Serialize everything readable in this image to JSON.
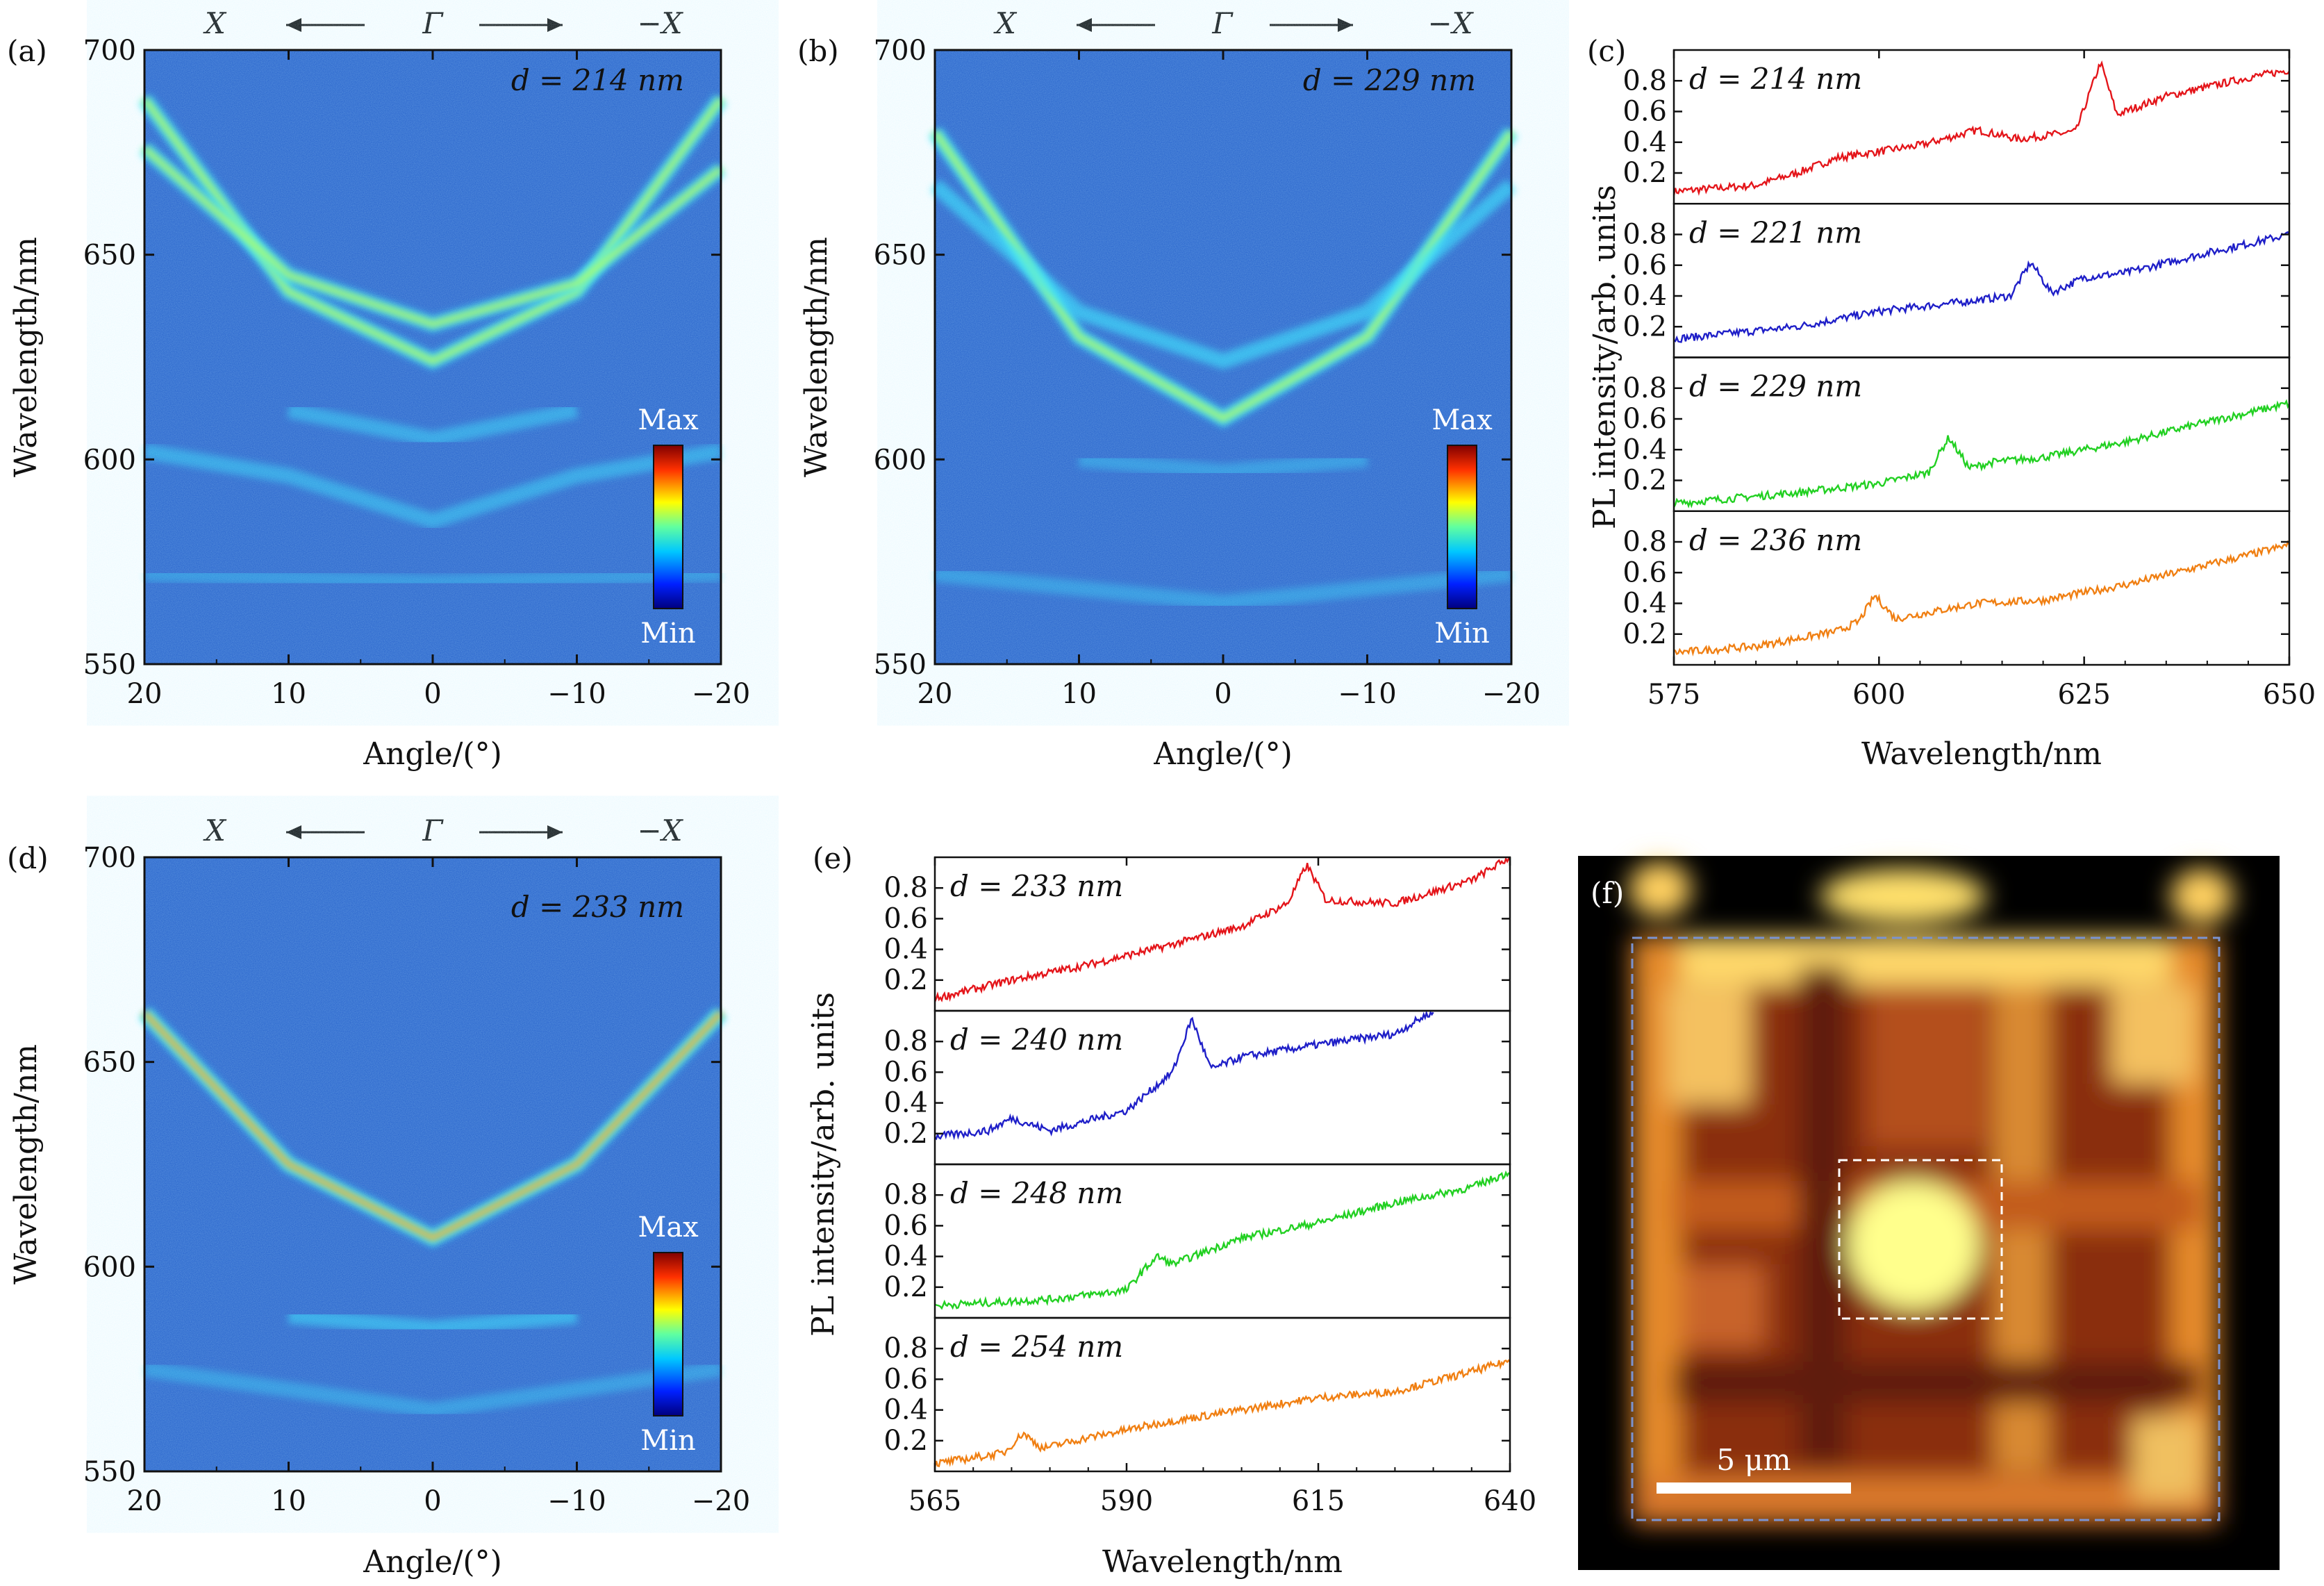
{
  "panels": {
    "a": {
      "label": "(a)",
      "d_text": "d = 214 nm",
      "xlabel": "Angle/(°)",
      "ylabel": "Wavelength/nm",
      "xticks": [
        "20",
        "10",
        "0",
        "−10",
        "−20"
      ],
      "yticks": [
        "700",
        "650",
        "600",
        "550"
      ],
      "dir": {
        "left": "X",
        "mid": "Γ",
        "right": "−X"
      },
      "cbar": {
        "max": "Max",
        "min": "Min"
      }
    },
    "b": {
      "label": "(b)",
      "d_text": "d = 229 nm",
      "xlabel": "Angle/(°)",
      "ylabel": "Wavelength/nm",
      "xticks": [
        "20",
        "10",
        "0",
        "−10",
        "−20"
      ],
      "yticks": [
        "700",
        "650",
        "600",
        "550"
      ],
      "dir": {
        "left": "X",
        "mid": "Γ",
        "right": "−X"
      },
      "cbar": {
        "max": "Max",
        "min": "Min"
      }
    },
    "c": {
      "label": "(c)",
      "xlabel": "Wavelength/nm",
      "ylabel": "PL intensity/arb. units",
      "xticks": [
        "575",
        "600",
        "625",
        "650"
      ],
      "yticks": [
        "0.8",
        "0.6",
        "0.4",
        "0.2"
      ],
      "d_labels": [
        "d = 214 nm",
        "d = 221 nm",
        "d = 229 nm",
        "d = 236 nm"
      ]
    },
    "d": {
      "label": "(d)",
      "d_text": "d = 233 nm",
      "xlabel": "Angle/(°)",
      "ylabel": "Wavelength/nm",
      "xticks": [
        "20",
        "10",
        "0",
        "−10",
        "−20"
      ],
      "yticks": [
        "700",
        "650",
        "600",
        "550"
      ],
      "dir": {
        "left": "X",
        "mid": "Γ",
        "right": "−X"
      },
      "cbar": {
        "max": "Max",
        "min": "Min"
      }
    },
    "e": {
      "label": "(e)",
      "xlabel": "Wavelength/nm",
      "ylabel": "PL intensity/arb. units",
      "xticks": [
        "565",
        "590",
        "615",
        "640"
      ],
      "yticks": [
        "0.8",
        "0.6",
        "0.4",
        "0.2"
      ],
      "d_labels": [
        "d = 233 nm",
        "d = 240 nm",
        "d = 248 nm",
        "d = 254 nm"
      ]
    },
    "f": {
      "label": "(f)",
      "scale_text": "5 μm"
    }
  },
  "colors": {
    "red": "#e4151a",
    "blue": "#1f1fc8",
    "green": "#22d022",
    "orange": "#f07f12",
    "map_bg": "#2b6fd6"
  },
  "chart_data": [
    {
      "type": "heatmap",
      "panel": "a",
      "title": "d = 214 nm",
      "xlabel": "Angle/(°)",
      "ylabel": "Wavelength/nm",
      "xlim": [
        20,
        -20
      ],
      "ylim": [
        550,
        700
      ],
      "bands": [
        {
          "name": "",
          "x": [
            20,
            10,
            0,
            -10,
            -20
          ],
          "y": [
            688,
            641,
            624,
            641,
            688
          ],
          "strength": 0.55
        },
        {
          "name": "",
          "x": [
            20,
            10,
            0,
            -10,
            -20
          ],
          "y": [
            676,
            645,
            633,
            643,
            671
          ],
          "strength": 0.5
        },
        {
          "name": "",
          "x": [
            10,
            0,
            -10
          ],
          "y": [
            612,
            605,
            612
          ],
          "strength": 0.25
        },
        {
          "name": "",
          "x": [
            20,
            10,
            0,
            -10,
            -20
          ],
          "y": [
            602,
            596,
            585,
            596,
            602
          ],
          "strength": 0.25
        },
        {
          "name": "",
          "x": [
            20,
            0,
            -20
          ],
          "y": [
            572,
            570,
            572
          ],
          "strength": 0.12
        }
      ]
    },
    {
      "type": "heatmap",
      "panel": "b",
      "title": "d = 229 nm",
      "xlabel": "Angle/(°)",
      "ylabel": "Wavelength/nm",
      "xlim": [
        20,
        -20
      ],
      "ylim": [
        550,
        700
      ],
      "bands": [
        {
          "name": "",
          "x": [
            20,
            10,
            0,
            -10,
            -20
          ],
          "y": [
            680,
            630,
            610,
            630,
            680
          ],
          "strength": 0.6
        },
        {
          "name": "",
          "x": [
            20,
            10,
            0,
            -10,
            -20
          ],
          "y": [
            667,
            636,
            624,
            636,
            667
          ],
          "strength": 0.4
        },
        {
          "name": "",
          "x": [
            10,
            0,
            -10
          ],
          "y": [
            600,
            597,
            600
          ],
          "strength": 0.15
        },
        {
          "name": "",
          "x": [
            20,
            0,
            -20
          ],
          "y": [
            572,
            565,
            572
          ],
          "strength": 0.15
        }
      ]
    },
    {
      "type": "heatmap",
      "panel": "d",
      "title": "d = 233 nm",
      "xlabel": "Angle/(°)",
      "ylabel": "Wavelength/nm",
      "xlim": [
        20,
        -20
      ],
      "ylim": [
        550,
        700
      ],
      "bands": [
        {
          "name": "",
          "x": [
            20,
            10,
            0,
            -10,
            -20
          ],
          "y": [
            662,
            625,
            607,
            625,
            662
          ],
          "strength": 0.75
        },
        {
          "name": "",
          "x": [
            10,
            0,
            -10
          ],
          "y": [
            588,
            585,
            588
          ],
          "strength": 0.3
        },
        {
          "name": "",
          "x": [
            20,
            0,
            -20
          ],
          "y": [
            575,
            565,
            575
          ],
          "strength": 0.15
        }
      ]
    },
    {
      "type": "line",
      "panel": "c",
      "xlabel": "Wavelength/nm",
      "ylabel": "PL intensity/arb. units",
      "xlim": [
        575,
        650
      ],
      "ylim": [
        0,
        1
      ],
      "series": [
        {
          "name": "d = 214 nm",
          "color": "red",
          "x": [
            575,
            585,
            590,
            595,
            605,
            612,
            617,
            624,
            627,
            629,
            635,
            645,
            650
          ],
          "y": [
            0.08,
            0.12,
            0.2,
            0.3,
            0.38,
            0.48,
            0.42,
            0.47,
            0.92,
            0.58,
            0.7,
            0.82,
            0.87
          ]
        },
        {
          "name": "d = 221 nm",
          "color": "blue",
          "x": [
            575,
            590,
            600,
            610,
            616,
            618.5,
            621,
            625,
            630,
            640,
            650
          ],
          "y": [
            0.12,
            0.2,
            0.3,
            0.36,
            0.4,
            0.62,
            0.42,
            0.52,
            0.55,
            0.68,
            0.8
          ]
        },
        {
          "name": "d = 229 nm",
          "color": "green",
          "x": [
            575,
            590,
            600,
            606,
            608.5,
            611,
            614,
            620,
            630,
            640,
            650
          ],
          "y": [
            0.05,
            0.12,
            0.18,
            0.25,
            0.48,
            0.28,
            0.32,
            0.35,
            0.45,
            0.58,
            0.7
          ]
        },
        {
          "name": "d = 236 nm",
          "color": "orange",
          "x": [
            575,
            585,
            595,
            597.5,
            599.5,
            602,
            612,
            620,
            630,
            640,
            650
          ],
          "y": [
            0.08,
            0.12,
            0.22,
            0.28,
            0.45,
            0.3,
            0.4,
            0.42,
            0.52,
            0.65,
            0.78
          ]
        }
      ]
    },
    {
      "type": "line",
      "panel": "e",
      "xlabel": "Wavelength/nm",
      "ylabel": "PL intensity/arb. units",
      "xlim": [
        565,
        640
      ],
      "ylim": [
        0,
        1
      ],
      "series": [
        {
          "name": "d = 233 nm",
          "color": "red",
          "x": [
            565,
            575,
            585,
            595,
            605,
            611,
            613.5,
            616,
            625,
            635,
            640
          ],
          "y": [
            0.08,
            0.2,
            0.3,
            0.42,
            0.55,
            0.7,
            0.95,
            0.72,
            0.7,
            0.85,
            1.0
          ]
        },
        {
          "name": "d = 240 nm",
          "color": "blue",
          "x": [
            565,
            572,
            575,
            580,
            590,
            596,
            598.5,
            601,
            605,
            615,
            625,
            630
          ],
          "y": [
            0.18,
            0.22,
            0.3,
            0.22,
            0.35,
            0.6,
            0.95,
            0.62,
            0.7,
            0.78,
            0.85,
            1.0
          ]
        },
        {
          "name": "d = 248 nm",
          "color": "green",
          "x": [
            565,
            580,
            590,
            592,
            594,
            596,
            605,
            615,
            625,
            635,
            640
          ],
          "y": [
            0.08,
            0.12,
            0.18,
            0.3,
            0.4,
            0.35,
            0.52,
            0.62,
            0.75,
            0.85,
            0.95
          ]
        },
        {
          "name": "d = 254 nm",
          "color": "orange",
          "x": [
            565,
            574,
            576.5,
            579,
            585,
            595,
            605,
            615,
            625,
            635,
            640
          ],
          "y": [
            0.05,
            0.12,
            0.25,
            0.15,
            0.22,
            0.32,
            0.4,
            0.48,
            0.52,
            0.65,
            0.72
          ]
        }
      ]
    }
  ]
}
